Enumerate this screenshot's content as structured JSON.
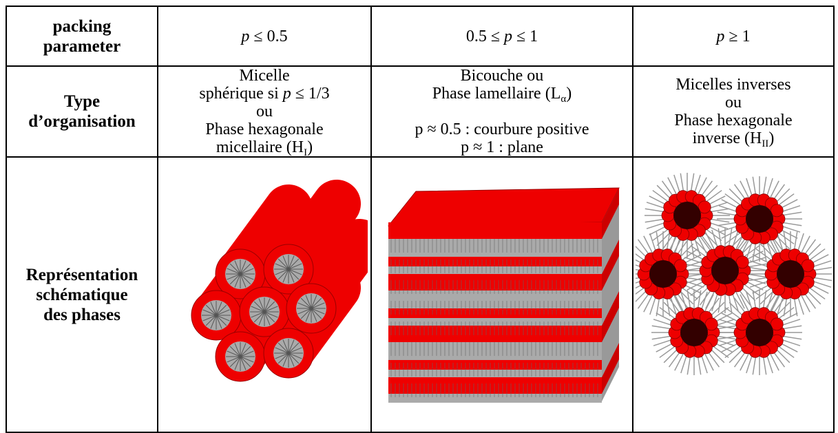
{
  "rows": [
    {
      "label": [
        "packing",
        "parameter"
      ],
      "cells": [
        [
          "p",
          " ≤ 0.5"
        ],
        [
          "0.5 ≤ ",
          "p",
          " ≤ 1"
        ],
        [
          "p",
          " ≥ 1"
        ]
      ]
    },
    {
      "label": [
        "Type",
        "d’organisation"
      ],
      "cells": [
        [
          "Micelle",
          "sphérique si ",
          "p",
          " ≤ 1/3",
          "ou",
          "Phase hexagonale",
          "micellaire (",
          "H",
          "I",
          ")"
        ],
        [
          "Bicouche ou",
          "Phase lamellaire (",
          "L",
          "α",
          ")",
          "p ≈ 0.5 : courbure positive",
          "p ≈ 1 : plane"
        ],
        [
          "Micelles inverses",
          "ou",
          "Phase hexagonale",
          "inverse (",
          "H",
          "II",
          ")"
        ]
      ]
    },
    {
      "label": [
        "Représentation",
        "schématique",
        "des phases"
      ]
    }
  ]
}
